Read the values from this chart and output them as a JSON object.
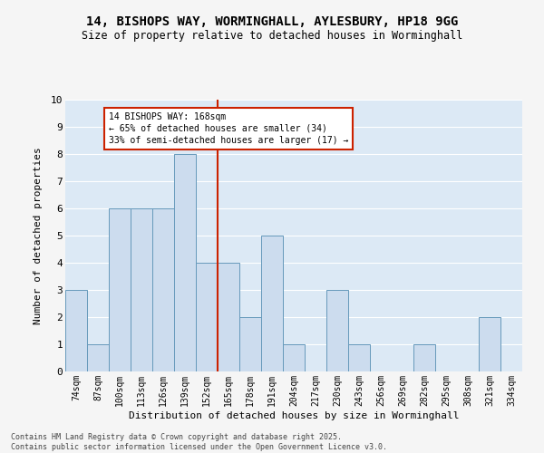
{
  "title_line1": "14, BISHOPS WAY, WORMINGHALL, AYLESBURY, HP18 9GG",
  "title_line2": "Size of property relative to detached houses in Worminghall",
  "xlabel": "Distribution of detached houses by size in Worminghall",
  "ylabel": "Number of detached properties",
  "categories": [
    "74sqm",
    "87sqm",
    "100sqm",
    "113sqm",
    "126sqm",
    "139sqm",
    "152sqm",
    "165sqm",
    "178sqm",
    "191sqm",
    "204sqm",
    "217sqm",
    "230sqm",
    "243sqm",
    "256sqm",
    "269sqm",
    "282sqm",
    "295sqm",
    "308sqm",
    "321sqm",
    "334sqm"
  ],
  "values": [
    3,
    1,
    6,
    6,
    6,
    8,
    4,
    4,
    2,
    5,
    1,
    0,
    3,
    1,
    0,
    0,
    1,
    0,
    0,
    2,
    0
  ],
  "bar_color": "#ccdcee",
  "bar_edge_color": "#6699bb",
  "reference_line_color": "#cc2200",
  "annotation_text": "14 BISHOPS WAY: 168sqm\n← 65% of detached houses are smaller (34)\n33% of semi-detached houses are larger (17) →",
  "annotation_box_color": "#ffffff",
  "annotation_box_edge_color": "#cc2200",
  "ylim": [
    0,
    10
  ],
  "yticks": [
    0,
    1,
    2,
    3,
    4,
    5,
    6,
    7,
    8,
    9,
    10
  ],
  "background_color": "#ddeeff",
  "plot_bg_color": "#dce9f5",
  "grid_color": "#ffffff",
  "footer_text": "Contains HM Land Registry data © Crown copyright and database right 2025.\nContains public sector information licensed under the Open Government Licence v3.0.",
  "figsize": [
    6.0,
    5.0
  ],
  "dpi": 100
}
